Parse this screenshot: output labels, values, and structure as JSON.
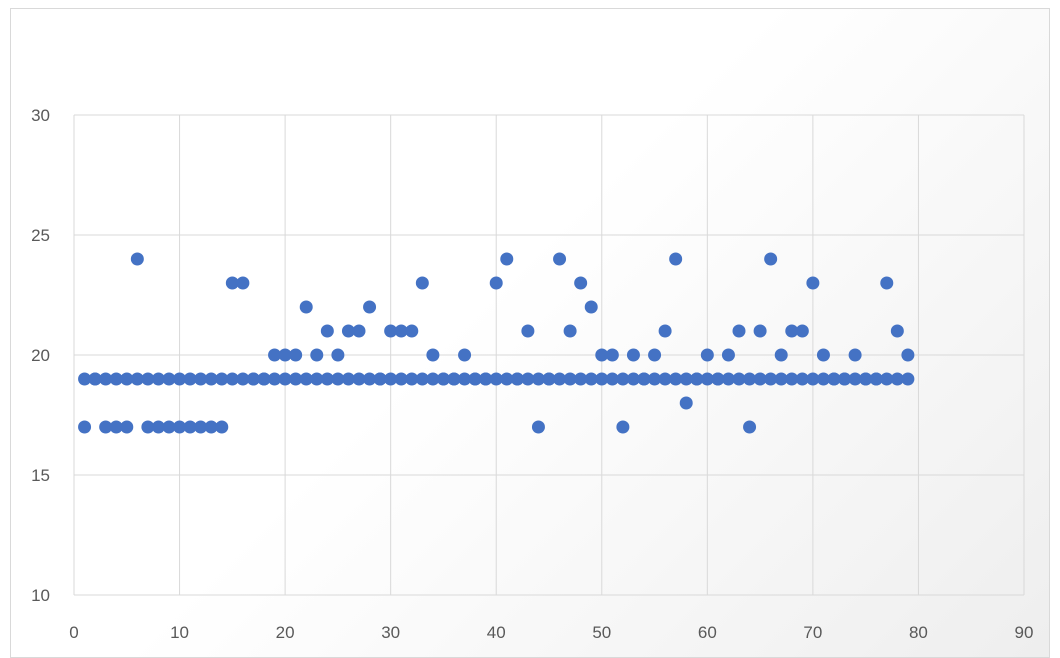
{
  "chart_data": {
    "type": "scatter",
    "title": "",
    "xlabel": "",
    "ylabel": "",
    "xlim": [
      0,
      90
    ],
    "ylim": [
      10,
      30
    ],
    "x_ticks": [
      "0",
      "10",
      "20",
      "30",
      "40",
      "50",
      "60",
      "70",
      "80",
      "90"
    ],
    "y_ticks": [
      "10",
      "15",
      "20",
      "25",
      "30"
    ],
    "grid": true,
    "legend": "none",
    "colors": {
      "series": "#4472c4",
      "grid": "#d9d9d9",
      "tick_text": "#595959"
    },
    "series": [
      {
        "values": [
          [
            1,
            17
          ],
          [
            2,
            19
          ],
          [
            3,
            17
          ],
          [
            4,
            17
          ],
          [
            5,
            17
          ],
          [
            6,
            24
          ],
          [
            7,
            17
          ],
          [
            8,
            17
          ],
          [
            9,
            17
          ],
          [
            10,
            17
          ],
          [
            11,
            17
          ],
          [
            12,
            17
          ],
          [
            13,
            17
          ],
          [
            14,
            17
          ],
          [
            15,
            23
          ],
          [
            16,
            23
          ],
          [
            17,
            19
          ],
          [
            18,
            19
          ],
          [
            19,
            20
          ],
          [
            20,
            20
          ],
          [
            21,
            20
          ],
          [
            22,
            22
          ],
          [
            23,
            20
          ],
          [
            24,
            21
          ],
          [
            25,
            20
          ],
          [
            26,
            21
          ],
          [
            27,
            21
          ],
          [
            28,
            22
          ],
          [
            29,
            19
          ],
          [
            30,
            21
          ],
          [
            31,
            21
          ],
          [
            32,
            21
          ],
          [
            33,
            23
          ],
          [
            34,
            20
          ],
          [
            35,
            19
          ],
          [
            36,
            19
          ],
          [
            37,
            20
          ],
          [
            38,
            19
          ],
          [
            39,
            19
          ],
          [
            40,
            23
          ],
          [
            41,
            24
          ],
          [
            42,
            19
          ],
          [
            43,
            21
          ],
          [
            44,
            17
          ],
          [
            45,
            19
          ],
          [
            46,
            24
          ],
          [
            47,
            21
          ],
          [
            48,
            23
          ],
          [
            49,
            22
          ],
          [
            50,
            20
          ],
          [
            51,
            20
          ],
          [
            52,
            17
          ],
          [
            53,
            20
          ],
          [
            54,
            19
          ],
          [
            55,
            20
          ],
          [
            56,
            21
          ],
          [
            57,
            24
          ],
          [
            58,
            18
          ],
          [
            59,
            19
          ],
          [
            60,
            20
          ],
          [
            61,
            19
          ],
          [
            62,
            20
          ],
          [
            63,
            21
          ],
          [
            64,
            17
          ],
          [
            65,
            21
          ],
          [
            66,
            24
          ],
          [
            67,
            20
          ],
          [
            68,
            21
          ],
          [
            69,
            21
          ],
          [
            70,
            23
          ],
          [
            71,
            20
          ],
          [
            72,
            19
          ],
          [
            73,
            19
          ],
          [
            74,
            20
          ],
          [
            75,
            19
          ],
          [
            76,
            19
          ],
          [
            77,
            23
          ],
          [
            78,
            21
          ],
          [
            79,
            20
          ]
        ]
      },
      {
        "values": [
          [
            1,
            19
          ],
          [
            2,
            19
          ],
          [
            3,
            19
          ],
          [
            4,
            19
          ],
          [
            5,
            19
          ],
          [
            6,
            19
          ],
          [
            7,
            19
          ],
          [
            8,
            19
          ],
          [
            9,
            19
          ],
          [
            10,
            19
          ],
          [
            11,
            19
          ],
          [
            12,
            19
          ],
          [
            13,
            19
          ],
          [
            14,
            19
          ],
          [
            15,
            19
          ],
          [
            16,
            19
          ],
          [
            17,
            19
          ],
          [
            18,
            19
          ],
          [
            19,
            19
          ],
          [
            20,
            19
          ],
          [
            21,
            19
          ],
          [
            22,
            19
          ],
          [
            23,
            19
          ],
          [
            24,
            19
          ],
          [
            25,
            19
          ],
          [
            26,
            19
          ],
          [
            27,
            19
          ],
          [
            28,
            19
          ],
          [
            29,
            19
          ],
          [
            30,
            19
          ],
          [
            31,
            19
          ],
          [
            32,
            19
          ],
          [
            33,
            19
          ],
          [
            34,
            19
          ],
          [
            35,
            19
          ],
          [
            36,
            19
          ],
          [
            37,
            19
          ],
          [
            38,
            19
          ],
          [
            39,
            19
          ],
          [
            40,
            19
          ],
          [
            41,
            19
          ],
          [
            42,
            19
          ],
          [
            43,
            19
          ],
          [
            44,
            19
          ],
          [
            45,
            19
          ],
          [
            46,
            19
          ],
          [
            47,
            19
          ],
          [
            48,
            19
          ],
          [
            49,
            19
          ],
          [
            50,
            19
          ],
          [
            51,
            19
          ],
          [
            52,
            19
          ],
          [
            53,
            19
          ],
          [
            54,
            19
          ],
          [
            55,
            19
          ],
          [
            56,
            19
          ],
          [
            57,
            19
          ],
          [
            58,
            19
          ],
          [
            59,
            19
          ],
          [
            60,
            19
          ],
          [
            61,
            19
          ],
          [
            62,
            19
          ],
          [
            63,
            19
          ],
          [
            64,
            19
          ],
          [
            65,
            19
          ],
          [
            66,
            19
          ],
          [
            67,
            19
          ],
          [
            68,
            19
          ],
          [
            69,
            19
          ],
          [
            70,
            19
          ],
          [
            71,
            19
          ],
          [
            72,
            19
          ],
          [
            73,
            19
          ],
          [
            74,
            19
          ],
          [
            75,
            19
          ],
          [
            76,
            19
          ],
          [
            77,
            19
          ],
          [
            78,
            19
          ],
          [
            79,
            19
          ]
        ]
      }
    ]
  }
}
